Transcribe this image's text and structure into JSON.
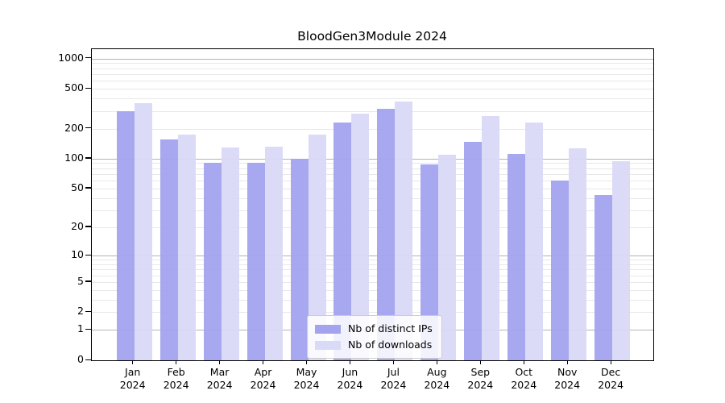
{
  "chart_data": {
    "type": "bar",
    "title": "BloodGen3Module 2024",
    "categories": [
      "Jan",
      "Feb",
      "Mar",
      "Apr",
      "May",
      "Jun",
      "Jul",
      "Aug",
      "Sep",
      "Oct",
      "Nov",
      "Dec"
    ],
    "year_label": "2024",
    "series": [
      {
        "name": "Nb of distinct IPs",
        "color": "#a3a3ef",
        "values": [
          300,
          157,
          90,
          90,
          100,
          228,
          314,
          88,
          146,
          111,
          60,
          43
        ]
      },
      {
        "name": "Nb of downloads",
        "color": "#d9d9f8",
        "values": [
          360,
          173,
          129,
          133,
          173,
          282,
          373,
          110,
          268,
          229,
          126,
          94
        ]
      }
    ],
    "yticks": [
      0,
      1,
      2,
      5,
      10,
      20,
      50,
      100,
      200,
      500,
      1000
    ],
    "ylabel": "",
    "xlabel": "",
    "scale": "log1p",
    "ylim": [
      0,
      1236
    ],
    "grid": true,
    "legend_position": "lower center"
  },
  "colors": {
    "major_grid": "#b3b3b3",
    "minor_grid": "#e8e8e8",
    "axis": "#000000",
    "text": "#000000",
    "background": "#ffffff"
  }
}
